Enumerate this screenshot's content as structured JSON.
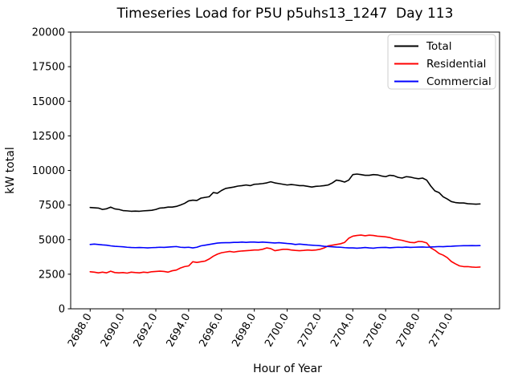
{
  "chart_data": {
    "type": "line",
    "title": "Timeseries Load for P5U p5uhs13_1247  Day 113",
    "xlabel": "Hour of Year",
    "ylabel": "kW total",
    "xlim": [
      2686.8125,
      2712.9375
    ],
    "ylim": [
      0,
      20000
    ],
    "grid": false,
    "legend_position": "upper right",
    "x_start": 2688.0,
    "x_step": 0.25,
    "x_tick_values": [
      2688,
      2690,
      2692,
      2694,
      2696,
      2698,
      2700,
      2702,
      2704,
      2706,
      2708,
      2710
    ],
    "x_tick_labels": [
      "2688.0",
      "2690.0",
      "2692.0",
      "2694.0",
      "2696.0",
      "2698.0",
      "2700.0",
      "2702.0",
      "2704.0",
      "2706.0",
      "2708.0",
      "2710.0"
    ],
    "y_tick_values": [
      0,
      2500,
      5000,
      7500,
      10000,
      12500,
      15000,
      17500,
      20000
    ],
    "y_tick_labels": [
      "0",
      "2500",
      "5000",
      "7500",
      "10000",
      "12500",
      "15000",
      "17500",
      "20000"
    ],
    "series": [
      {
        "name": "Total",
        "color": "#000000",
        "values": [
          7320,
          7300,
          7280,
          7180,
          7230,
          7350,
          7220,
          7180,
          7100,
          7080,
          7050,
          7060,
          7050,
          7080,
          7100,
          7120,
          7180,
          7280,
          7300,
          7350,
          7350,
          7400,
          7500,
          7620,
          7800,
          7850,
          7830,
          8000,
          8050,
          8100,
          8400,
          8350,
          8550,
          8700,
          8750,
          8800,
          8870,
          8900,
          8950,
          8900,
          9000,
          9020,
          9050,
          9100,
          9180,
          9100,
          9050,
          9000,
          8950,
          8980,
          8950,
          8900,
          8900,
          8850,
          8800,
          8850,
          8870,
          8900,
          8950,
          9100,
          9300,
          9250,
          9160,
          9300,
          9700,
          9740,
          9700,
          9650,
          9650,
          9700,
          9680,
          9600,
          9550,
          9650,
          9620,
          9500,
          9450,
          9550,
          9520,
          9450,
          9400,
          9450,
          9300,
          8870,
          8520,
          8400,
          8100,
          7940,
          7750,
          7680,
          7650,
          7650,
          7600,
          7580,
          7560,
          7580
        ]
      },
      {
        "name": "Residential",
        "color": "#ff0000",
        "values": [
          2680,
          2650,
          2600,
          2650,
          2600,
          2720,
          2620,
          2600,
          2620,
          2580,
          2650,
          2620,
          2600,
          2650,
          2620,
          2680,
          2700,
          2720,
          2700,
          2650,
          2750,
          2800,
          2950,
          3050,
          3100,
          3400,
          3350,
          3400,
          3450,
          3600,
          3800,
          3950,
          4050,
          4100,
          4150,
          4100,
          4150,
          4180,
          4200,
          4220,
          4250,
          4250,
          4300,
          4400,
          4350,
          4200,
          4250,
          4300,
          4300,
          4250,
          4220,
          4200,
          4220,
          4250,
          4230,
          4250,
          4300,
          4400,
          4550,
          4600,
          4650,
          4700,
          4800,
          5100,
          5250,
          5300,
          5330,
          5280,
          5320,
          5300,
          5250,
          5230,
          5200,
          5150,
          5050,
          5000,
          4950,
          4870,
          4800,
          4780,
          4870,
          4850,
          4760,
          4400,
          4230,
          4000,
          3880,
          3700,
          3420,
          3250,
          3100,
          3050,
          3050,
          3020,
          3000,
          3020
        ]
      },
      {
        "name": "Commercial",
        "color": "#0000ff",
        "values": [
          4650,
          4680,
          4650,
          4620,
          4600,
          4550,
          4520,
          4500,
          4480,
          4450,
          4430,
          4420,
          4430,
          4420,
          4400,
          4420,
          4430,
          4450,
          4440,
          4460,
          4480,
          4500,
          4450,
          4430,
          4450,
          4400,
          4450,
          4550,
          4600,
          4650,
          4700,
          4750,
          4770,
          4780,
          4780,
          4800,
          4800,
          4820,
          4800,
          4820,
          4820,
          4800,
          4820,
          4800,
          4780,
          4760,
          4780,
          4750,
          4720,
          4700,
          4650,
          4680,
          4650,
          4620,
          4600,
          4580,
          4560,
          4520,
          4500,
          4480,
          4460,
          4450,
          4420,
          4400,
          4400,
          4380,
          4400,
          4430,
          4400,
          4380,
          4420,
          4430,
          4440,
          4410,
          4430,
          4450,
          4440,
          4460,
          4440,
          4450,
          4460,
          4470,
          4450,
          4470,
          4480,
          4500,
          4490,
          4510,
          4520,
          4540,
          4550,
          4560,
          4560,
          4570,
          4560,
          4570
        ]
      }
    ]
  }
}
